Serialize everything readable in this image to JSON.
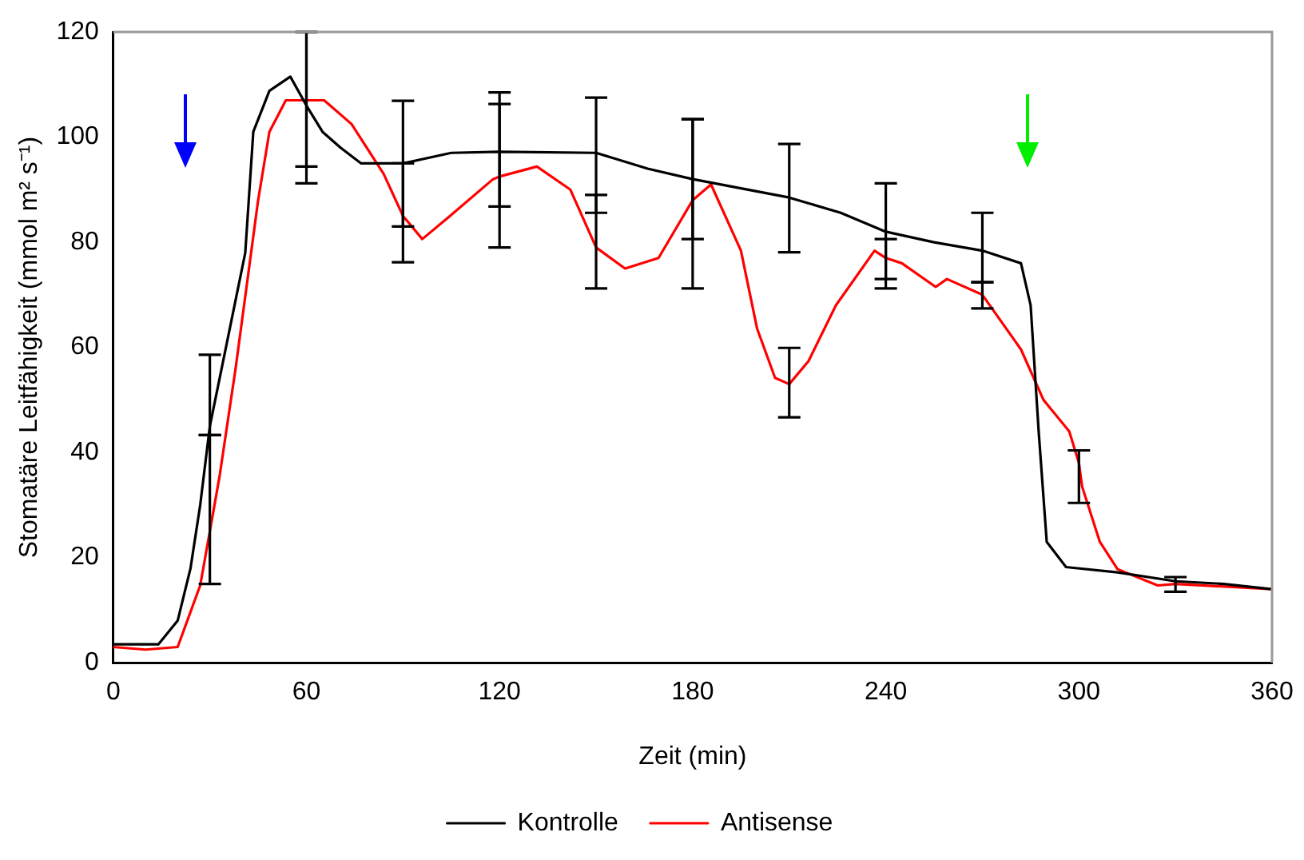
{
  "chart_data": {
    "type": "line",
    "xlabel": "Zeit (min)",
    "ylabel": "Stomatäre Leitfähigkeit (mmol m² s⁻¹)",
    "xlim": [
      0,
      360
    ],
    "xticks": [
      0,
      60,
      120,
      180,
      240,
      300,
      360
    ],
    "ylim": [
      0,
      120
    ],
    "yticks": [
      0,
      20,
      40,
      60,
      80,
      100,
      120
    ],
    "grid": false,
    "legend": "bottom",
    "marker": "none",
    "line_style": "solid",
    "series": [
      {
        "name": "Kontrolle",
        "color": "#000000",
        "x": [
          0,
          10,
          14,
          20,
          24,
          27,
          30,
          35,
          41,
          43.5,
          48.5,
          55,
          60,
          65,
          70.6,
          77,
          90,
          105,
          120,
          150,
          166,
          180,
          210,
          226,
          240,
          255,
          270,
          282,
          285,
          287.5,
          290,
          296,
          312,
          330,
          345,
          360
        ],
        "values": [
          3.5,
          3.5,
          3.5,
          8,
          18,
          30,
          45,
          60,
          78,
          101,
          108.8,
          111.5,
          106,
          101,
          98,
          95,
          95,
          97,
          97.2,
          97,
          94,
          92,
          88.5,
          85.6,
          82,
          80,
          78.4,
          76,
          68,
          44,
          23,
          18.2,
          17.2,
          15.5,
          15,
          14
        ],
        "errors": [
          null,
          null,
          null,
          null,
          null,
          null,
          [
            43.3,
            58.6
          ],
          null,
          null,
          null,
          null,
          null,
          [
            94.4,
            120
          ],
          null,
          null,
          null,
          [
            83,
            106.9
          ],
          null,
          [
            86.8,
            108.5
          ],
          [
            85.6,
            107.5
          ],
          null,
          [
            80.6,
            103.4
          ],
          [
            78.1,
            98.7
          ],
          null,
          [
            73,
            91.2
          ],
          null,
          [
            72.4,
            85.6
          ],
          null,
          null,
          null,
          null,
          null,
          null,
          [
            13.5,
            16.3
          ],
          null,
          null
        ]
      },
      {
        "name": "Antisense",
        "color": "#ff0000",
        "x": [
          0,
          10,
          20,
          27,
          30,
          33,
          38,
          45,
          48.5,
          53.6,
          60,
          65.5,
          74,
          84,
          90,
          96,
          104.6,
          118,
          120,
          131.6,
          142,
          150,
          159,
          169.4,
          180,
          185.7,
          195,
          200,
          205.6,
          210,
          216,
          224.5,
          236.5,
          240,
          245,
          255.5,
          259,
          270,
          282,
          289,
          297,
          300,
          301,
          306.5,
          312,
          324.5,
          330,
          360
        ],
        "values": [
          3,
          2.5,
          3,
          14.7,
          25,
          35.4,
          56,
          88,
          101,
          107,
          107,
          107,
          102.5,
          93,
          85,
          80.6,
          85,
          92,
          92.5,
          94.4,
          90,
          79,
          75,
          77,
          88,
          91,
          78.4,
          63.6,
          54.2,
          53,
          57.4,
          68,
          78.4,
          77,
          76,
          71.5,
          73,
          70,
          59.6,
          50,
          44,
          38,
          33.5,
          23,
          17.8,
          14.7,
          15,
          14
        ],
        "errors": [
          null,
          null,
          null,
          null,
          [
            15,
            43.3
          ],
          null,
          null,
          null,
          null,
          null,
          [
            91.2,
            120
          ],
          null,
          null,
          null,
          [
            76.2,
            95
          ],
          null,
          null,
          null,
          [
            79,
            106.3
          ],
          null,
          null,
          [
            71.2,
            89
          ],
          null,
          null,
          [
            71.2,
            103.4
          ],
          null,
          null,
          null,
          null,
          [
            46.7,
            59.9
          ],
          null,
          null,
          null,
          [
            71.2,
            80.6
          ],
          null,
          null,
          null,
          [
            67.4,
            72.4
          ],
          null,
          null,
          null,
          [
            30.4,
            40.4
          ],
          null,
          null,
          null,
          null,
          null,
          null
        ]
      }
    ]
  }
}
